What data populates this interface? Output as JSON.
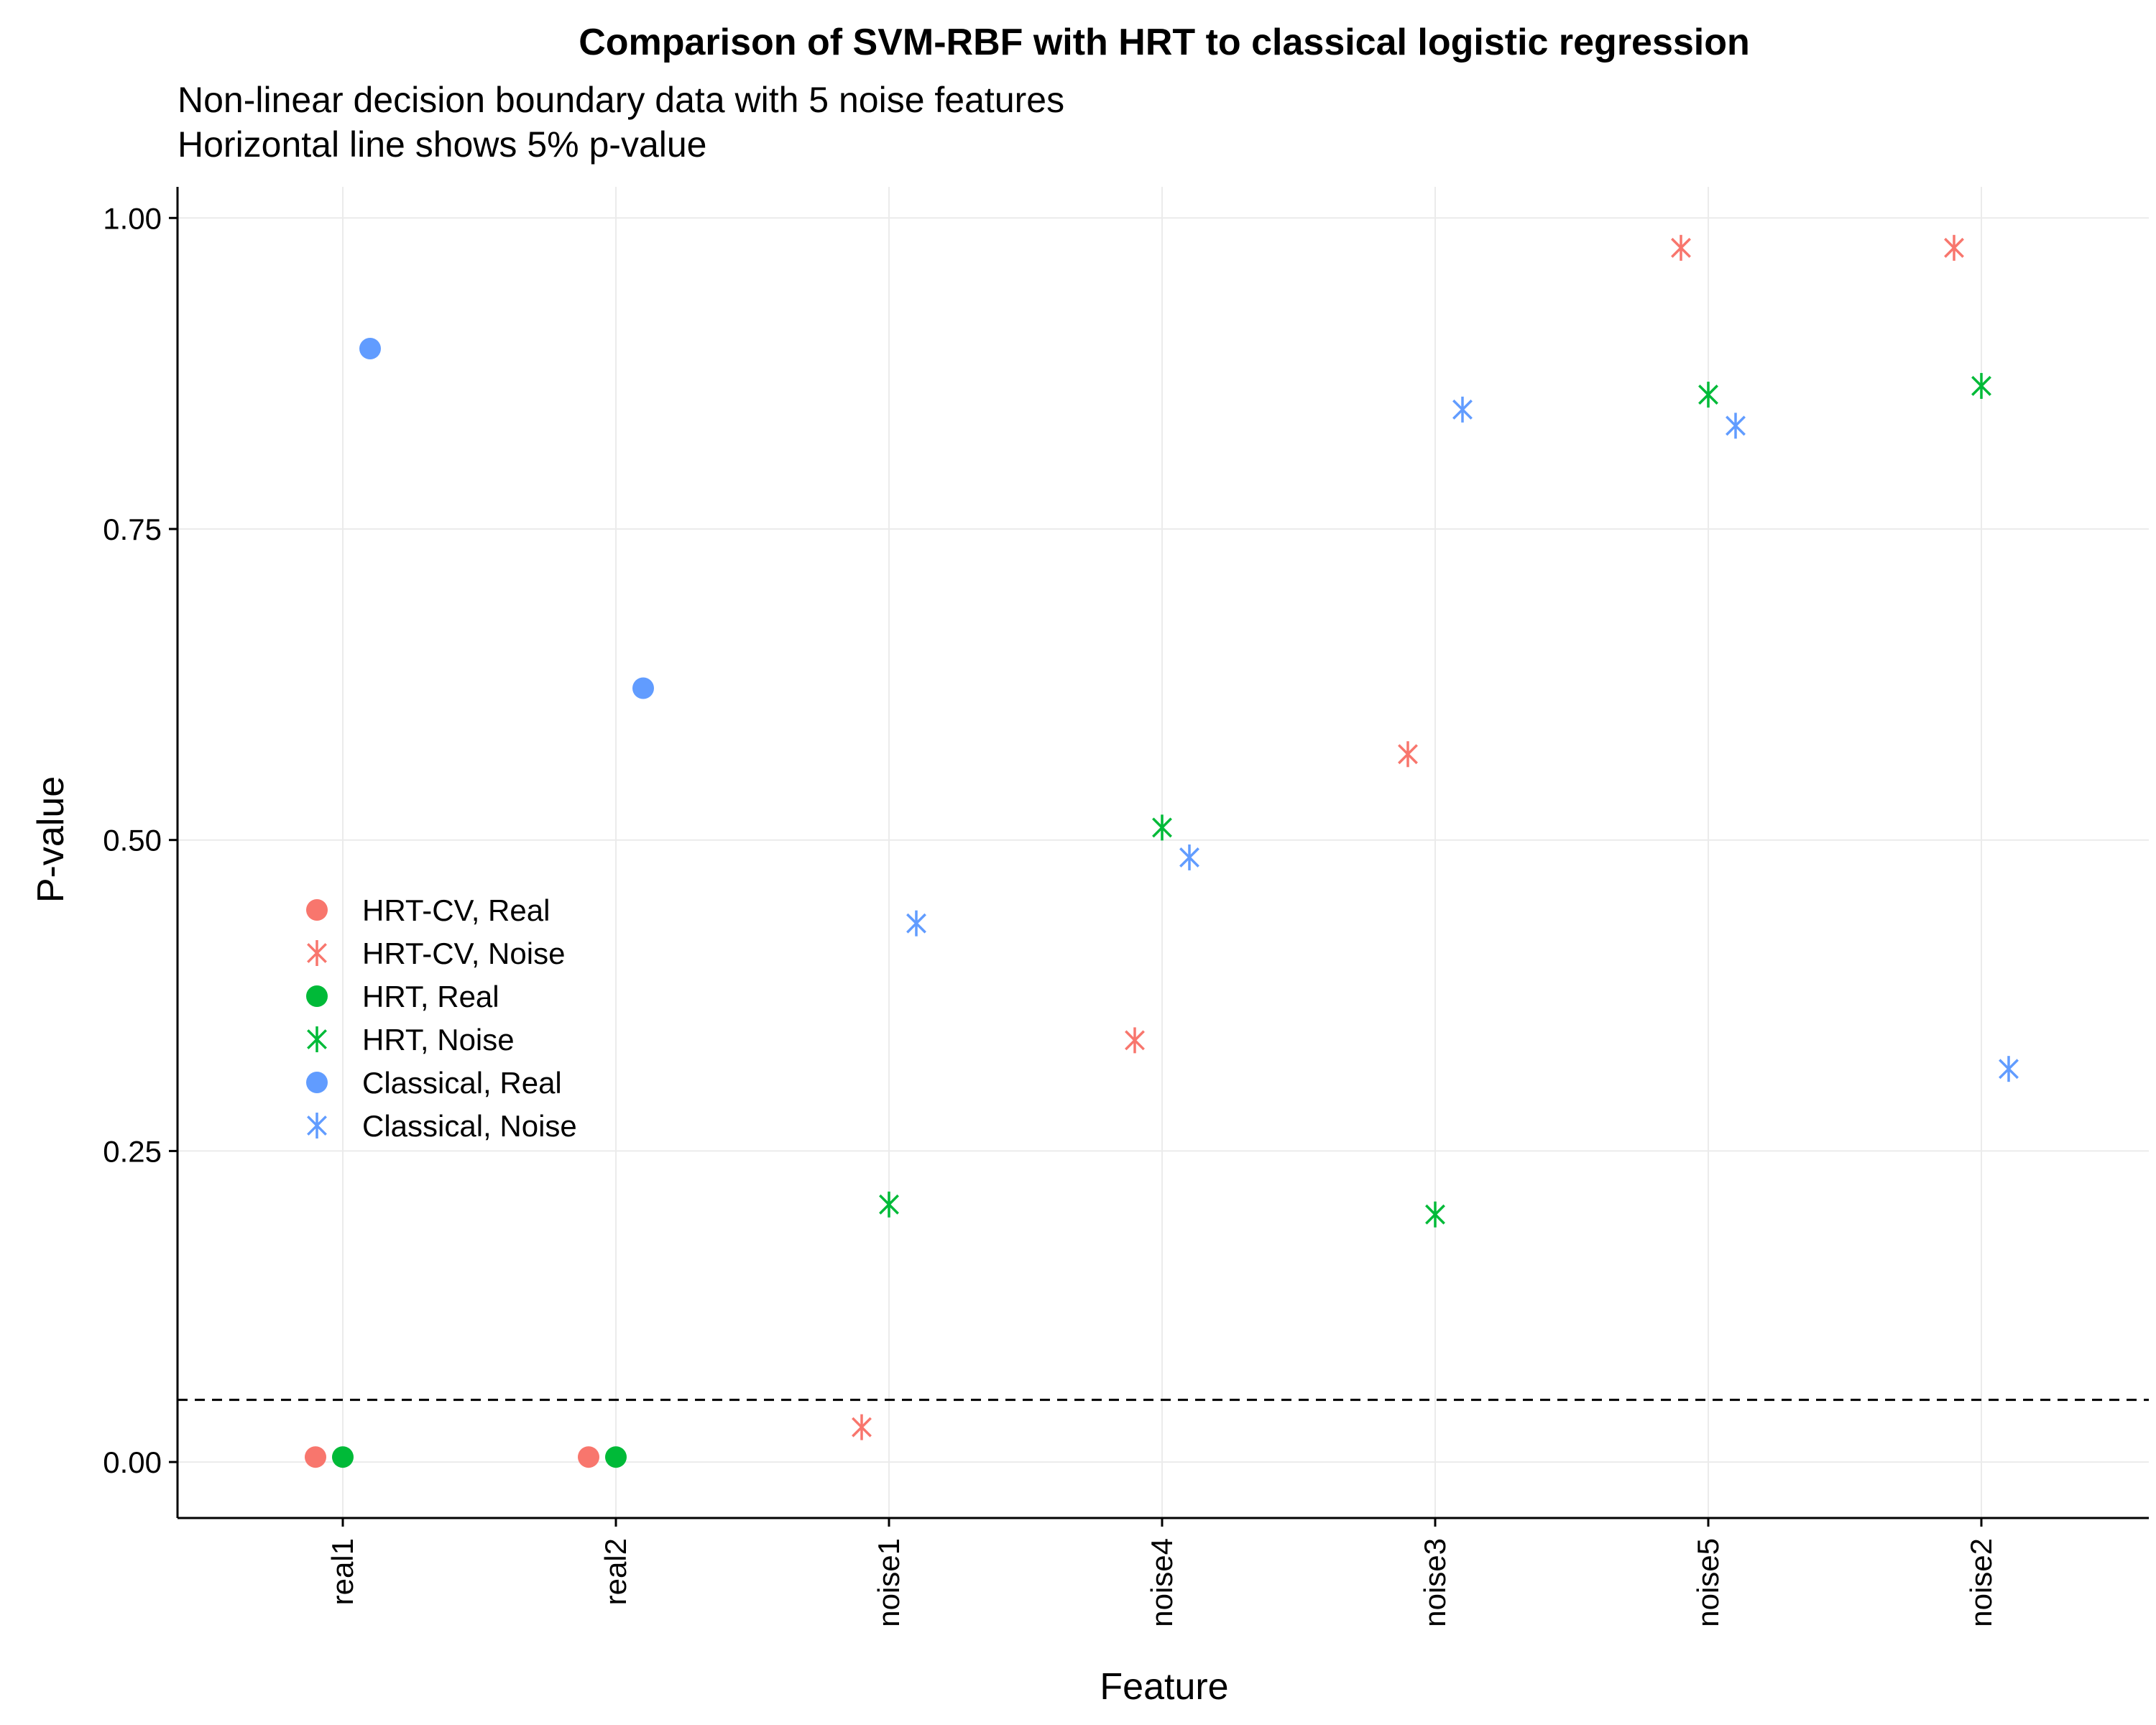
{
  "chart_data": {
    "type": "scatter",
    "title": "Comparison of SVM-RBF with HRT to classical logistic regression",
    "subtitle": [
      "Non-linear decision boundary data with 5 noise features",
      "Horizontal line shows 5% p-value"
    ],
    "xlabel": "Feature",
    "ylabel": "P-value",
    "categories": [
      "real1",
      "real2",
      "noise1",
      "noise4",
      "noise3",
      "noise5",
      "noise2"
    ],
    "ylim": [
      -0.045,
      1.025
    ],
    "yticks": [
      0.0,
      0.25,
      0.5,
      0.75,
      1.0
    ],
    "ytick_labels": [
      "0.00",
      "0.25",
      "0.50",
      "0.75",
      "1.00"
    ],
    "reference_line": {
      "y": 0.05,
      "style": "dashed"
    },
    "grid": true,
    "legend_position": "left-center",
    "series": [
      {
        "name": "HRT-CV, Real",
        "method": "HRT-CV",
        "feature_type": "Real",
        "color": "#F8766D",
        "marker": "circle",
        "offset": -1,
        "points": [
          {
            "x": "real1",
            "y": 0.004
          },
          {
            "x": "real2",
            "y": 0.004
          }
        ]
      },
      {
        "name": "HRT-CV, Noise",
        "method": "HRT-CV",
        "feature_type": "Noise",
        "color": "#F8766D",
        "marker": "asterisk",
        "offset": -1,
        "points": [
          {
            "x": "noise1",
            "y": 0.028
          },
          {
            "x": "noise4",
            "y": 0.339
          },
          {
            "x": "noise3",
            "y": 0.569
          },
          {
            "x": "noise5",
            "y": 0.976
          },
          {
            "x": "noise2",
            "y": 0.976
          }
        ]
      },
      {
        "name": "HRT, Real",
        "method": "HRT",
        "feature_type": "Real",
        "color": "#00BA38",
        "marker": "circle",
        "offset": 0,
        "points": [
          {
            "x": "real1",
            "y": 0.004
          },
          {
            "x": "real2",
            "y": 0.004
          }
        ]
      },
      {
        "name": "HRT, Noise",
        "method": "HRT",
        "feature_type": "Noise",
        "color": "#00BA38",
        "marker": "asterisk",
        "offset": 0,
        "points": [
          {
            "x": "noise1",
            "y": 0.207
          },
          {
            "x": "noise4",
            "y": 0.51
          },
          {
            "x": "noise3",
            "y": 0.199
          },
          {
            "x": "noise5",
            "y": 0.858
          },
          {
            "x": "noise2",
            "y": 0.865
          }
        ]
      },
      {
        "name": "Classical, Real",
        "method": "Classical",
        "feature_type": "Real",
        "color": "#619CFF",
        "marker": "circle",
        "offset": 1,
        "points": [
          {
            "x": "real1",
            "y": 0.895
          },
          {
            "x": "real2",
            "y": 0.622
          }
        ]
      },
      {
        "name": "Classical, Noise",
        "method": "Classical",
        "feature_type": "Noise",
        "color": "#619CFF",
        "marker": "asterisk",
        "offset": 1,
        "points": [
          {
            "x": "noise1",
            "y": 0.433
          },
          {
            "x": "noise4",
            "y": 0.486
          },
          {
            "x": "noise3",
            "y": 0.846
          },
          {
            "x": "noise5",
            "y": 0.833
          },
          {
            "x": "noise2",
            "y": 0.316
          }
        ]
      }
    ]
  }
}
